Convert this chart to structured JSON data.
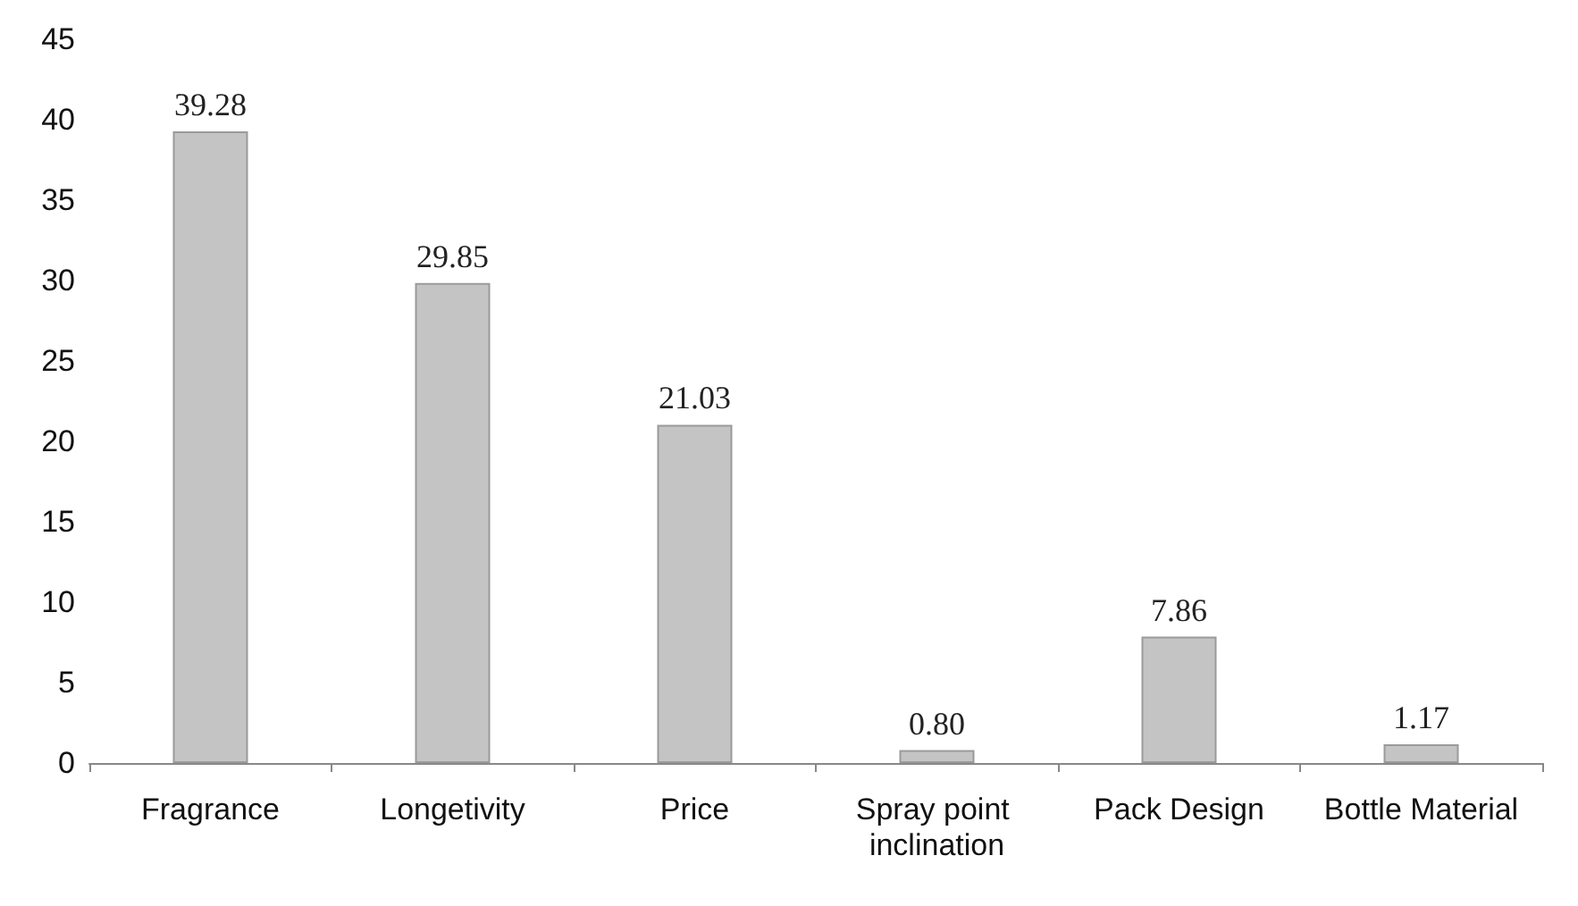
{
  "chart_data": {
    "type": "bar",
    "categories": [
      "Fragrance",
      "Longetivity",
      "Price",
      "Spray point inclination",
      "Pack Design",
      "Bottle Material"
    ],
    "values": [
      39.28,
      29.85,
      21.03,
      0.8,
      7.86,
      1.17
    ],
    "value_labels": [
      "39.28",
      "29.85",
      "21.03",
      "0.80",
      "7.86",
      "1.17"
    ],
    "color": "#c4c4c4",
    "ylim": [
      0,
      45
    ],
    "yticks": [
      0,
      5,
      10,
      15,
      20,
      25,
      30,
      35,
      40,
      45
    ],
    "grid": false
  }
}
